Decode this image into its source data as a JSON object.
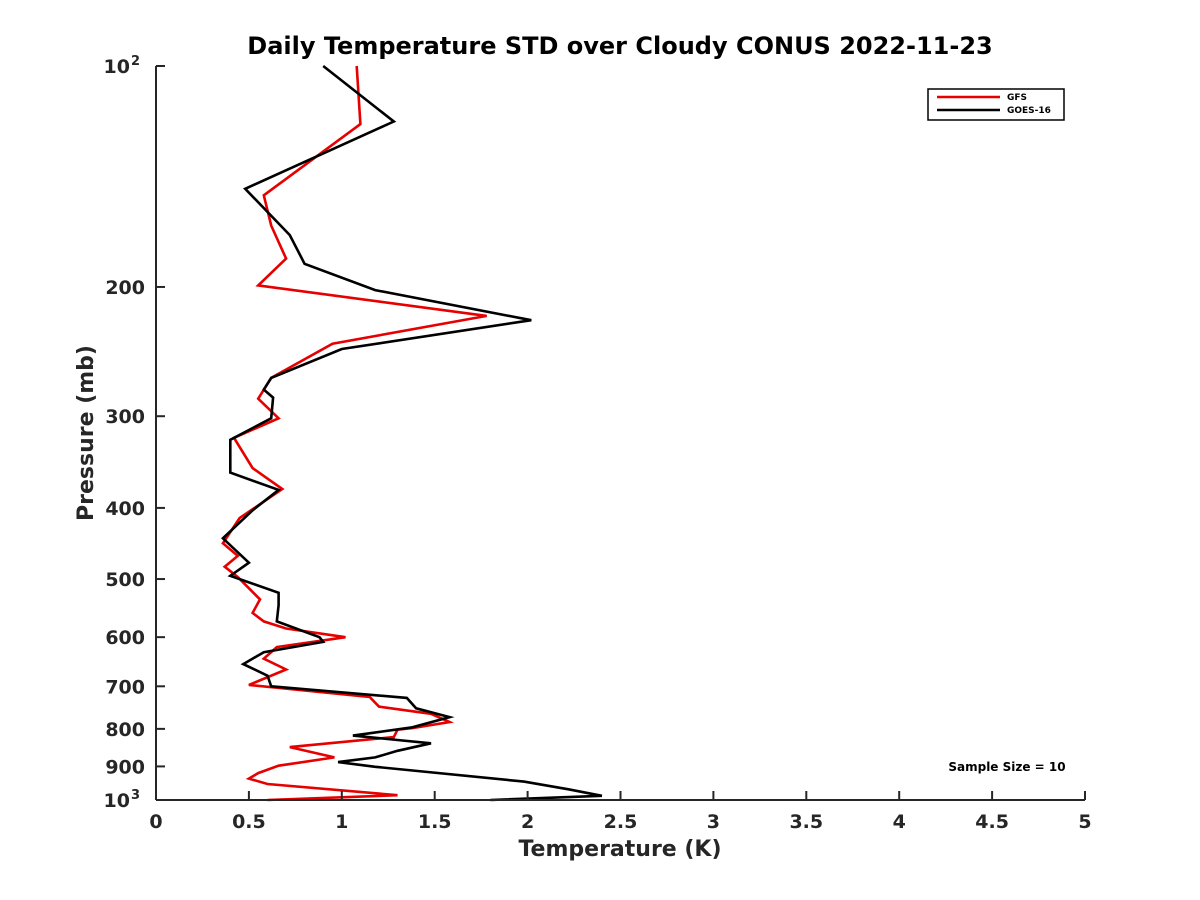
{
  "chart_data": {
    "type": "line",
    "title": "Daily Temperature STD over Cloudy CONUS 2022-11-23",
    "xlabel": "Temperature (K)",
    "ylabel": "Pressure (mb)",
    "xlim": [
      0,
      5
    ],
    "ylim": [
      100,
      1000
    ],
    "y_scale": "log",
    "y_reversed": true,
    "grid": false,
    "legend_position": "top-right",
    "x_ticks": [
      "0",
      "0.5",
      "1",
      "1.5",
      "2",
      "2.5",
      "3",
      "3.5",
      "4",
      "4.5",
      "5"
    ],
    "y_ticks": [
      {
        "value": 100,
        "base": "10",
        "exp": "2"
      },
      {
        "value": 200,
        "label": "200"
      },
      {
        "value": 300,
        "label": "300"
      },
      {
        "value": 400,
        "label": "400"
      },
      {
        "value": 500,
        "label": "500"
      },
      {
        "value": 600,
        "label": "600"
      },
      {
        "value": 700,
        "label": "700"
      },
      {
        "value": 800,
        "label": "800"
      },
      {
        "value": 900,
        "label": "900"
      },
      {
        "value": 1000,
        "base": "10",
        "exp": "3"
      }
    ],
    "annotation": "Sample Size = 10",
    "series": [
      {
        "name": "GFS",
        "color": "#e60000",
        "points": [
          [
            1.08,
            100
          ],
          [
            1.1,
            120
          ],
          [
            0.58,
            150
          ],
          [
            0.62,
            165
          ],
          [
            0.7,
            183
          ],
          [
            0.55,
            199
          ],
          [
            1.78,
            219
          ],
          [
            0.95,
            239
          ],
          [
            0.62,
            266
          ],
          [
            0.55,
            284
          ],
          [
            0.66,
            302
          ],
          [
            0.42,
            321
          ],
          [
            0.52,
            353
          ],
          [
            0.68,
            377
          ],
          [
            0.45,
            413
          ],
          [
            0.36,
            447
          ],
          [
            0.44,
            465
          ],
          [
            0.37,
            481
          ],
          [
            0.44,
            497
          ],
          [
            0.56,
            533
          ],
          [
            0.52,
            556
          ],
          [
            0.58,
            571
          ],
          [
            0.7,
            584
          ],
          [
            1.02,
            600
          ],
          [
            0.65,
            619
          ],
          [
            0.58,
            642
          ],
          [
            0.7,
            664
          ],
          [
            0.5,
            697
          ],
          [
            1.15,
            724
          ],
          [
            1.2,
            746
          ],
          [
            1.48,
            763
          ],
          [
            1.58,
            783
          ],
          [
            1.38,
            798
          ],
          [
            1.3,
            802
          ],
          [
            1.28,
            821
          ],
          [
            0.72,
            847
          ],
          [
            0.96,
            875
          ],
          [
            0.66,
            898
          ],
          [
            0.55,
            919
          ],
          [
            0.5,
            935
          ],
          [
            0.6,
            951
          ],
          [
            1.3,
            985
          ],
          [
            0.6,
            1000
          ]
        ]
      },
      {
        "name": "GOES-16",
        "color": "#000000",
        "points": [
          [
            0.9,
            100
          ],
          [
            1.28,
            119
          ],
          [
            0.48,
            147
          ],
          [
            0.72,
            170
          ],
          [
            0.8,
            186
          ],
          [
            1.18,
            202
          ],
          [
            2.02,
            222
          ],
          [
            1.0,
            243
          ],
          [
            0.62,
            266
          ],
          [
            0.58,
            276
          ],
          [
            0.63,
            283
          ],
          [
            0.62,
            302
          ],
          [
            0.4,
            323
          ],
          [
            0.4,
            358
          ],
          [
            0.66,
            378
          ],
          [
            0.52,
            403
          ],
          [
            0.36,
            440
          ],
          [
            0.5,
            475
          ],
          [
            0.4,
            495
          ],
          [
            0.66,
            522
          ],
          [
            0.66,
            543
          ],
          [
            0.65,
            571
          ],
          [
            0.88,
            600
          ],
          [
            0.9,
            609
          ],
          [
            0.58,
            629
          ],
          [
            0.47,
            653
          ],
          [
            0.6,
            677
          ],
          [
            0.62,
            700
          ],
          [
            1.35,
            726
          ],
          [
            1.4,
            750
          ],
          [
            1.58,
            771
          ],
          [
            1.38,
            796
          ],
          [
            1.06,
            817
          ],
          [
            1.48,
            837
          ],
          [
            1.3,
            857
          ],
          [
            1.18,
            875
          ],
          [
            0.98,
            888
          ],
          [
            1.18,
            901
          ],
          [
            1.98,
            944
          ],
          [
            2.22,
            967
          ],
          [
            2.4,
            987
          ],
          [
            1.8,
            1000
          ]
        ]
      }
    ]
  }
}
